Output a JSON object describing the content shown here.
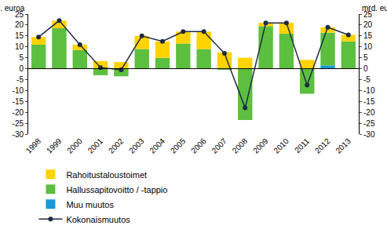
{
  "chart_data": {
    "type": "bar",
    "stacked": true,
    "y_label": "mrd. euroa",
    "categories": [
      "1998",
      "1999",
      "2000",
      "2001",
      "2002",
      "2003",
      "2004",
      "2005",
      "2006",
      "2007",
      "2008",
      "2009",
      "2010",
      "2011",
      "2012",
      "2013"
    ],
    "series": [
      {
        "name": "Rahoitustaloustoimet",
        "type": "bar",
        "color": "#ffd200",
        "values": [
          3.5,
          3.5,
          2.5,
          3.5,
          3,
          6,
          7.5,
          5.5,
          8,
          7.5,
          5,
          1.5,
          5,
          4,
          2.5,
          3
        ]
      },
      {
        "name": "Hallussapitovoitto / -tappio",
        "type": "bar",
        "color": "#5cbf3f",
        "values": [
          11,
          18.5,
          8.5,
          -3,
          -3.5,
          9,
          5,
          11.5,
          9,
          -0.5,
          -23.5,
          19.5,
          16,
          -11.5,
          15,
          12.5
        ]
      },
      {
        "name": "Muu muutos",
        "type": "bar",
        "color": "#1a9ad6",
        "values": [
          0,
          0,
          0,
          0,
          0,
          0,
          0,
          0,
          0,
          0,
          0,
          0,
          0,
          0,
          1.5,
          0
        ]
      },
      {
        "name": "Kokonaismuutos",
        "type": "line",
        "color": "#1f2a44",
        "marker": "circle",
        "values": [
          14.5,
          22,
          11,
          0.5,
          -0.5,
          15,
          12.5,
          17,
          17,
          7,
          -18,
          21,
          21,
          -7.5,
          19,
          15.5
        ]
      }
    ],
    "ylim": [
      -30,
      25
    ],
    "yticks": [
      -30,
      -25,
      -20,
      -15,
      -10,
      -5,
      0,
      5,
      10,
      15,
      20,
      25
    ],
    "grid": false,
    "legend": "bottom"
  }
}
